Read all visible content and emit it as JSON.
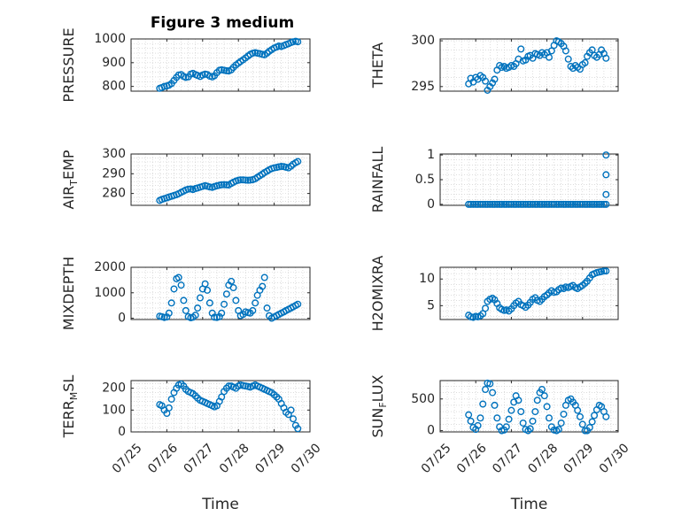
{
  "figure": {
    "title": "Figure 3 medium"
  },
  "colors": {
    "marker": "#0072BD",
    "axis": "#262626",
    "grid": "#c8c8c8"
  },
  "chart_data": [
    {
      "type": "scatter",
      "ylabel": {
        "pre": "PRESSURE",
        "sub": "",
        "post": ""
      },
      "xlim": [
        0,
        5
      ],
      "ylim": [
        780,
        1000
      ],
      "yticks": [
        800,
        900,
        1000
      ],
      "xticks": [
        0,
        1,
        2,
        3,
        4,
        5
      ],
      "xticklabels": [
        "07/25",
        "07/26",
        "07/27",
        "07/28",
        "07/29",
        "07/30"
      ],
      "show_xticklabels": false,
      "xlabel": "",
      "x": [
        0.8,
        0.86,
        0.93,
        1.0,
        1.06,
        1.13,
        1.2,
        1.27,
        1.33,
        1.4,
        1.47,
        1.53,
        1.6,
        1.67,
        1.73,
        1.8,
        1.86,
        1.93,
        2.0,
        2.07,
        2.13,
        2.2,
        2.27,
        2.33,
        2.4,
        2.47,
        2.53,
        2.6,
        2.67,
        2.73,
        2.8,
        2.86,
        2.93,
        3.0,
        3.06,
        3.13,
        3.2,
        3.27,
        3.33,
        3.4,
        3.47,
        3.53,
        3.6,
        3.67,
        3.73,
        3.8,
        3.86,
        3.93,
        4.0,
        4.07,
        4.13,
        4.2,
        4.27,
        4.33,
        4.4,
        4.47,
        4.53,
        4.6,
        4.66
      ],
      "y": [
        792,
        795,
        800,
        802,
        805,
        812,
        825,
        838,
        848,
        850,
        842,
        838,
        840,
        852,
        855,
        850,
        846,
        842,
        848,
        852,
        850,
        843,
        840,
        845,
        858,
        868,
        870,
        868,
        866,
        865,
        870,
        880,
        890,
        898,
        905,
        912,
        920,
        928,
        935,
        940,
        942,
        940,
        938,
        935,
        933,
        940,
        948,
        955,
        962,
        966,
        970,
        968,
        972,
        976,
        980,
        985,
        988,
        990,
        988
      ]
    },
    {
      "type": "scatter",
      "ylabel": {
        "pre": "THETA",
        "sub": "",
        "post": ""
      },
      "xlim": [
        0,
        5
      ],
      "ylim": [
        294.5,
        300.2
      ],
      "yticks": [
        295,
        300
      ],
      "xticks": [
        0,
        1,
        2,
        3,
        4,
        5
      ],
      "xticklabels": [
        "07/25",
        "07/26",
        "07/27",
        "07/28",
        "07/29",
        "07/30"
      ],
      "show_xticklabels": false,
      "xlabel": "",
      "x": [
        0.8,
        0.86,
        0.93,
        1.0,
        1.06,
        1.13,
        1.2,
        1.27,
        1.33,
        1.4,
        1.47,
        1.53,
        1.6,
        1.67,
        1.73,
        1.8,
        1.86,
        1.93,
        2.0,
        2.07,
        2.13,
        2.2,
        2.27,
        2.33,
        2.4,
        2.47,
        2.53,
        2.6,
        2.67,
        2.73,
        2.8,
        2.86,
        2.93,
        3.0,
        3.06,
        3.13,
        3.2,
        3.27,
        3.33,
        3.4,
        3.47,
        3.53,
        3.6,
        3.67,
        3.73,
        3.8,
        3.86,
        3.93,
        4.0,
        4.07,
        4.13,
        4.2,
        4.27,
        4.33,
        4.4,
        4.47,
        4.53,
        4.6,
        4.66
      ],
      "y": [
        295.3,
        295.9,
        295.5,
        296.0,
        295.8,
        296.2,
        296.0,
        295.6,
        294.6,
        295.0,
        295.4,
        295.8,
        296.8,
        297.3,
        297.1,
        297.2,
        297.0,
        297.1,
        297.3,
        297.2,
        297.5,
        298.0,
        299.1,
        297.8,
        297.9,
        298.3,
        298.4,
        298.1,
        298.6,
        298.5,
        298.4,
        298.7,
        298.5,
        298.7,
        298.2,
        298.9,
        299.5,
        300.0,
        299.9,
        299.7,
        299.4,
        298.9,
        298.0,
        297.2,
        297.0,
        297.3,
        297.1,
        296.9,
        297.4,
        297.6,
        298.3,
        298.7,
        299.0,
        298.4,
        298.2,
        298.5,
        299.0,
        298.6,
        298.1
      ]
    },
    {
      "type": "scatter",
      "ylabel": {
        "pre": "AIR",
        "sub": "T",
        "post": "EMP"
      },
      "xlim": [
        0,
        5
      ],
      "ylim": [
        274,
        300
      ],
      "yticks": [
        280,
        290,
        300
      ],
      "xticks": [
        0,
        1,
        2,
        3,
        4,
        5
      ],
      "xticklabels": [
        "07/25",
        "07/26",
        "07/27",
        "07/28",
        "07/29",
        "07/30"
      ],
      "show_xticklabels": false,
      "xlabel": "",
      "x": [
        0.8,
        0.86,
        0.93,
        1.0,
        1.06,
        1.13,
        1.2,
        1.27,
        1.33,
        1.4,
        1.47,
        1.53,
        1.6,
        1.67,
        1.73,
        1.8,
        1.86,
        1.93,
        2.0,
        2.07,
        2.13,
        2.2,
        2.27,
        2.33,
        2.4,
        2.47,
        2.53,
        2.6,
        2.67,
        2.73,
        2.8,
        2.86,
        2.93,
        3.0,
        3.06,
        3.13,
        3.2,
        3.27,
        3.33,
        3.4,
        3.47,
        3.53,
        3.6,
        3.67,
        3.73,
        3.8,
        3.86,
        3.93,
        4.0,
        4.07,
        4.13,
        4.2,
        4.27,
        4.33,
        4.4,
        4.47,
        4.53,
        4.6,
        4.66
      ],
      "y": [
        276.5,
        277.0,
        277.4,
        277.8,
        278.2,
        278.6,
        279.0,
        279.4,
        279.9,
        280.6,
        281.2,
        281.8,
        282.2,
        282.3,
        282.0,
        282.5,
        282.8,
        283.2,
        283.6,
        284.0,
        283.7,
        283.3,
        283.1,
        283.5,
        283.9,
        284.2,
        284.4,
        284.5,
        284.4,
        284.3,
        285.1,
        285.7,
        286.3,
        286.7,
        286.9,
        286.9,
        286.8,
        286.7,
        286.8,
        287.0,
        287.4,
        288.2,
        289.0,
        289.8,
        290.6,
        291.3,
        292.0,
        292.6,
        293.0,
        293.2,
        293.5,
        293.7,
        293.6,
        293.3,
        293.0,
        293.8,
        294.8,
        295.6,
        296.2
      ]
    },
    {
      "type": "scatter",
      "ylabel": {
        "pre": "RAINFALL",
        "sub": "",
        "post": ""
      },
      "xlim": [
        0,
        5
      ],
      "ylim": [
        -0.02,
        1.02
      ],
      "yticks": [
        0,
        0.5,
        1
      ],
      "xticks": [
        0,
        1,
        2,
        3,
        4,
        5
      ],
      "xticklabels": [
        "07/25",
        "07/26",
        "07/27",
        "07/28",
        "07/29",
        "07/30"
      ],
      "show_xticklabels": false,
      "xlabel": "",
      "x": [
        0.8,
        0.86,
        0.93,
        1.0,
        1.06,
        1.13,
        1.2,
        1.27,
        1.33,
        1.4,
        1.47,
        1.53,
        1.6,
        1.67,
        1.73,
        1.8,
        1.86,
        1.93,
        2.0,
        2.07,
        2.13,
        2.2,
        2.27,
        2.33,
        2.4,
        2.47,
        2.53,
        2.6,
        2.67,
        2.73,
        2.8,
        2.86,
        2.93,
        3.0,
        3.06,
        3.13,
        3.2,
        3.27,
        3.33,
        3.4,
        3.47,
        3.53,
        3.6,
        3.67,
        3.73,
        3.8,
        3.86,
        3.93,
        4.0,
        4.07,
        4.13,
        4.2,
        4.27,
        4.33,
        4.4,
        4.47,
        4.53,
        4.6,
        4.66,
        4.66,
        4.66,
        4.66
      ],
      "y": [
        0,
        0,
        0,
        0,
        0,
        0,
        0,
        0,
        0,
        0,
        0,
        0,
        0,
        0,
        0,
        0,
        0,
        0,
        0,
        0,
        0,
        0,
        0,
        0,
        0,
        0,
        0,
        0,
        0,
        0,
        0,
        0,
        0,
        0,
        0,
        0,
        0,
        0,
        0,
        0,
        0,
        0,
        0,
        0,
        0,
        0,
        0,
        0,
        0,
        0,
        0,
        0,
        0,
        0,
        0,
        0,
        0,
        0,
        0,
        0.2,
        0.6,
        1.0
      ]
    },
    {
      "type": "scatter",
      "ylabel": {
        "pre": "MIXDEPTH",
        "sub": "",
        "post": ""
      },
      "xlim": [
        0,
        5
      ],
      "ylim": [
        -50,
        2000
      ],
      "yticks": [
        0,
        1000,
        2000
      ],
      "xticks": [
        0,
        1,
        2,
        3,
        4,
        5
      ],
      "xticklabels": [
        "07/25",
        "07/26",
        "07/27",
        "07/28",
        "07/29",
        "07/30"
      ],
      "show_xticklabels": false,
      "xlabel": "",
      "x": [
        0.8,
        0.86,
        0.93,
        1.0,
        1.06,
        1.13,
        1.2,
        1.27,
        1.33,
        1.4,
        1.47,
        1.53,
        1.6,
        1.67,
        1.73,
        1.8,
        1.86,
        1.93,
        2.0,
        2.07,
        2.13,
        2.2,
        2.27,
        2.33,
        2.4,
        2.47,
        2.53,
        2.6,
        2.67,
        2.73,
        2.8,
        2.86,
        2.93,
        3.0,
        3.06,
        3.13,
        3.2,
        3.27,
        3.33,
        3.4,
        3.47,
        3.53,
        3.6,
        3.67,
        3.73,
        3.8,
        3.86,
        3.93,
        4.0,
        4.07,
        4.13,
        4.2,
        4.27,
        4.33,
        4.4,
        4.47,
        4.53,
        4.6,
        4.66
      ],
      "y": [
        80,
        60,
        30,
        50,
        200,
        600,
        1150,
        1550,
        1600,
        1300,
        700,
        300,
        60,
        20,
        40,
        120,
        400,
        800,
        1150,
        1350,
        1100,
        600,
        200,
        40,
        30,
        60,
        200,
        550,
        950,
        1300,
        1450,
        1200,
        700,
        300,
        100,
        150,
        250,
        220,
        200,
        300,
        600,
        900,
        1100,
        1250,
        1600,
        400,
        100,
        0,
        50,
        100,
        150,
        200,
        250,
        300,
        350,
        400,
        450,
        500,
        550
      ]
    },
    {
      "type": "scatter",
      "ylabel": {
        "pre": "H2OMIXRA",
        "sub": "",
        "post": ""
      },
      "xlim": [
        0,
        5
      ],
      "ylim": [
        2.4,
        12.2
      ],
      "yticks": [
        5,
        10
      ],
      "xticks": [
        0,
        1,
        2,
        3,
        4,
        5
      ],
      "xticklabels": [
        "07/25",
        "07/26",
        "07/27",
        "07/28",
        "07/29",
        "07/30"
      ],
      "show_xticklabels": false,
      "xlabel": "",
      "x": [
        0.8,
        0.86,
        0.93,
        1.0,
        1.06,
        1.13,
        1.2,
        1.27,
        1.33,
        1.4,
        1.47,
        1.53,
        1.6,
        1.67,
        1.73,
        1.8,
        1.86,
        1.93,
        2.0,
        2.07,
        2.13,
        2.2,
        2.27,
        2.33,
        2.4,
        2.47,
        2.53,
        2.6,
        2.67,
        2.73,
        2.8,
        2.86,
        2.93,
        3.0,
        3.06,
        3.13,
        3.2,
        3.27,
        3.33,
        3.4,
        3.47,
        3.53,
        3.6,
        3.67,
        3.73,
        3.8,
        3.86,
        3.93,
        4.0,
        4.07,
        4.13,
        4.2,
        4.27,
        4.33,
        4.4,
        4.47,
        4.53,
        4.6,
        4.66
      ],
      "y": [
        3.2,
        2.9,
        2.8,
        3.0,
        2.9,
        3.1,
        3.5,
        4.5,
        5.8,
        6.2,
        6.4,
        6.1,
        5.4,
        4.6,
        4.3,
        4.1,
        4.2,
        4.0,
        4.4,
        5.0,
        5.5,
        5.8,
        5.2,
        5.0,
        4.7,
        5.1,
        5.6,
        6.2,
        6.5,
        6.0,
        5.8,
        6.2,
        6.7,
        7.0,
        7.4,
        7.8,
        7.5,
        7.6,
        8.0,
        8.3,
        8.2,
        8.5,
        8.4,
        8.6,
        8.8,
        8.4,
        8.2,
        8.5,
        8.8,
        9.2,
        9.6,
        10.2,
        10.8,
        11.0,
        11.2,
        11.3,
        11.4,
        11.5,
        11.5
      ]
    },
    {
      "type": "scatter",
      "ylabel": {
        "pre": "TERR",
        "sub": "M",
        "post": "SL"
      },
      "xlim": [
        0,
        5
      ],
      "ylim": [
        0,
        235
      ],
      "yticks": [
        0,
        100,
        200
      ],
      "xticks": [
        0,
        1,
        2,
        3,
        4,
        5
      ],
      "xticklabels": [
        "07/25",
        "07/26",
        "07/27",
        "07/28",
        "07/29",
        "07/30"
      ],
      "show_xticklabels": true,
      "xlabel": "Time",
      "x": [
        0.8,
        0.86,
        0.93,
        1.0,
        1.06,
        1.13,
        1.2,
        1.27,
        1.33,
        1.4,
        1.47,
        1.53,
        1.6,
        1.67,
        1.73,
        1.8,
        1.86,
        1.93,
        2.0,
        2.07,
        2.13,
        2.2,
        2.27,
        2.33,
        2.4,
        2.47,
        2.53,
        2.6,
        2.67,
        2.73,
        2.8,
        2.86,
        2.93,
        3.0,
        3.06,
        3.13,
        3.2,
        3.27,
        3.33,
        3.4,
        3.47,
        3.53,
        3.6,
        3.67,
        3.73,
        3.8,
        3.86,
        3.93,
        4.0,
        4.07,
        4.13,
        4.2,
        4.27,
        4.33,
        4.4,
        4.47,
        4.53,
        4.6,
        4.66
      ],
      "y": [
        125,
        120,
        100,
        85,
        110,
        150,
        180,
        200,
        215,
        220,
        210,
        195,
        185,
        180,
        175,
        165,
        155,
        145,
        140,
        135,
        130,
        125,
        120,
        115,
        120,
        140,
        160,
        185,
        200,
        210,
        210,
        205,
        200,
        210,
        215,
        212,
        210,
        208,
        205,
        210,
        215,
        210,
        205,
        200,
        195,
        190,
        185,
        180,
        170,
        160,
        150,
        130,
        110,
        90,
        80,
        100,
        60,
        30,
        15
      ]
    },
    {
      "type": "scatter",
      "ylabel": {
        "pre": "SUN",
        "sub": "F",
        "post": "LUX"
      },
      "xlim": [
        0,
        5
      ],
      "ylim": [
        -20,
        790
      ],
      "yticks": [
        0,
        500
      ],
      "xticks": [
        0,
        1,
        2,
        3,
        4,
        5
      ],
      "xticklabels": [
        "07/25",
        "07/26",
        "07/27",
        "07/28",
        "07/29",
        "07/30"
      ],
      "show_xticklabels": true,
      "xlabel": "Time",
      "x": [
        0.8,
        0.86,
        0.93,
        1.0,
        1.06,
        1.13,
        1.2,
        1.27,
        1.33,
        1.4,
        1.47,
        1.53,
        1.6,
        1.67,
        1.73,
        1.8,
        1.86,
        1.93,
        2.0,
        2.07,
        2.13,
        2.2,
        2.27,
        2.33,
        2.4,
        2.47,
        2.53,
        2.6,
        2.67,
        2.73,
        2.8,
        2.86,
        2.93,
        3.0,
        3.06,
        3.13,
        3.2,
        3.27,
        3.33,
        3.4,
        3.47,
        3.53,
        3.6,
        3.67,
        3.73,
        3.8,
        3.86,
        3.93,
        4.0,
        4.07,
        4.13,
        4.2,
        4.27,
        4.33,
        4.4,
        4.47,
        4.53,
        4.6,
        4.66
      ],
      "y": [
        250,
        150,
        50,
        20,
        80,
        200,
        420,
        650,
        750,
        740,
        600,
        400,
        200,
        60,
        0,
        10,
        60,
        180,
        320,
        450,
        550,
        480,
        300,
        120,
        20,
        0,
        30,
        150,
        300,
        480,
        600,
        650,
        550,
        380,
        200,
        60,
        10,
        0,
        20,
        120,
        260,
        400,
        480,
        500,
        450,
        400,
        320,
        220,
        100,
        0,
        0,
        50,
        140,
        240,
        330,
        400,
        380,
        300,
        220
      ]
    }
  ]
}
